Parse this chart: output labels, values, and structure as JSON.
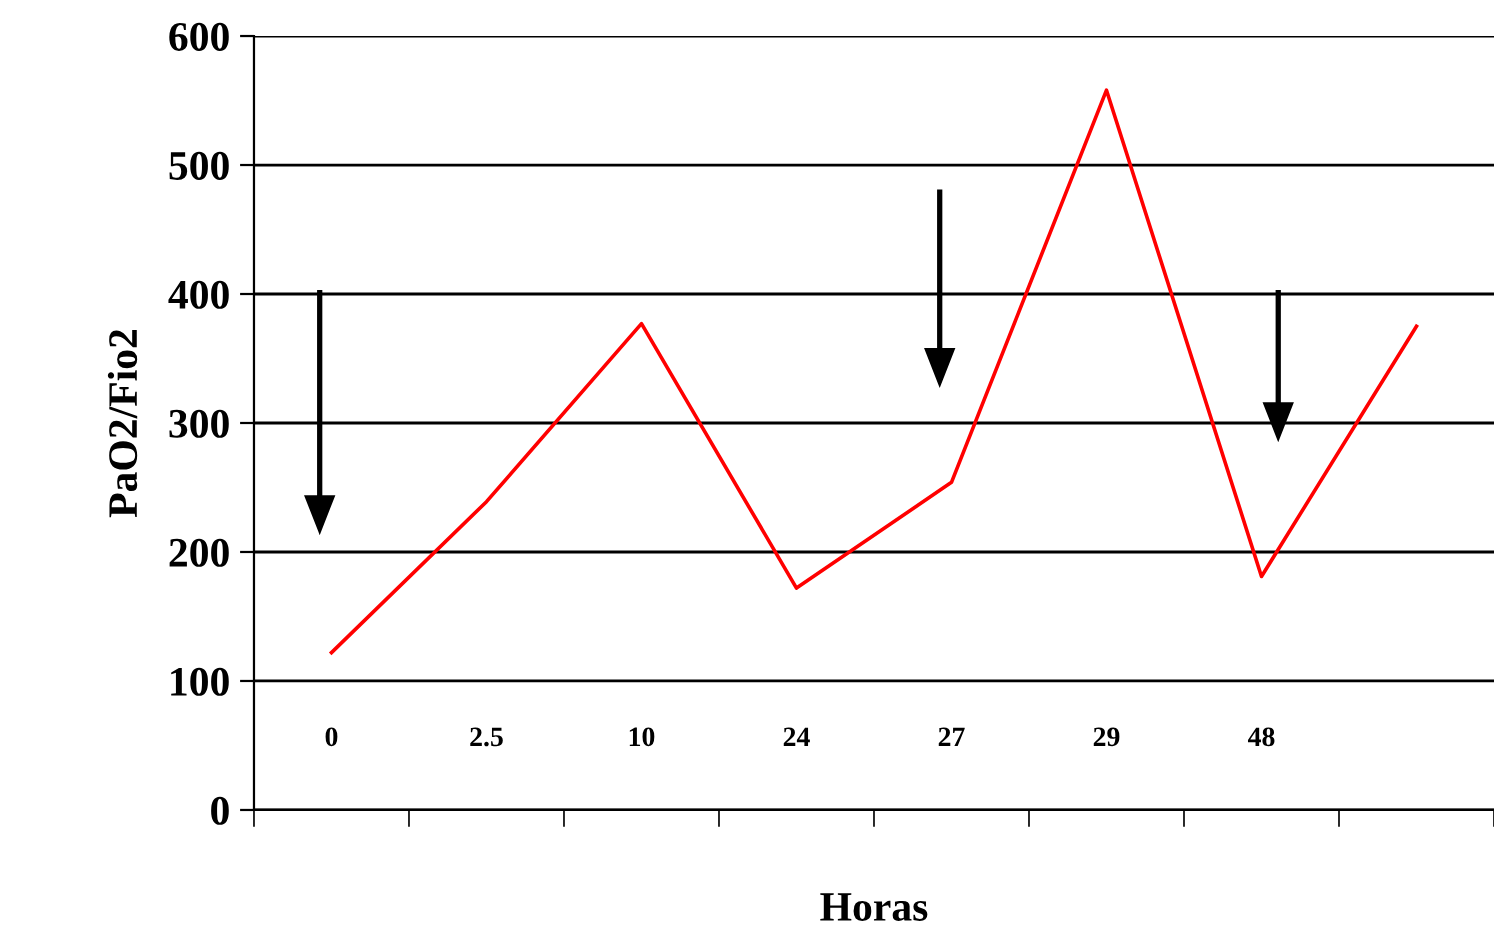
{
  "chart_data": {
    "type": "line",
    "xlabel": "Horas",
    "ylabel": "PaO2/Fio2",
    "categories": [
      "0",
      "2.5",
      "10",
      "24",
      "27",
      "29",
      "48",
      null
    ],
    "series": [
      {
        "color": "#ff0000",
        "values": [
          122,
          239,
          377,
          172,
          254,
          558,
          181,
          375
        ]
      }
    ],
    "ylim": [
      0,
      600
    ],
    "yticks": [
      0,
      100,
      200,
      300,
      400,
      500,
      600
    ],
    "grid": "y",
    "marker": "none",
    "line_style": "solid",
    "legend": false
  }
}
